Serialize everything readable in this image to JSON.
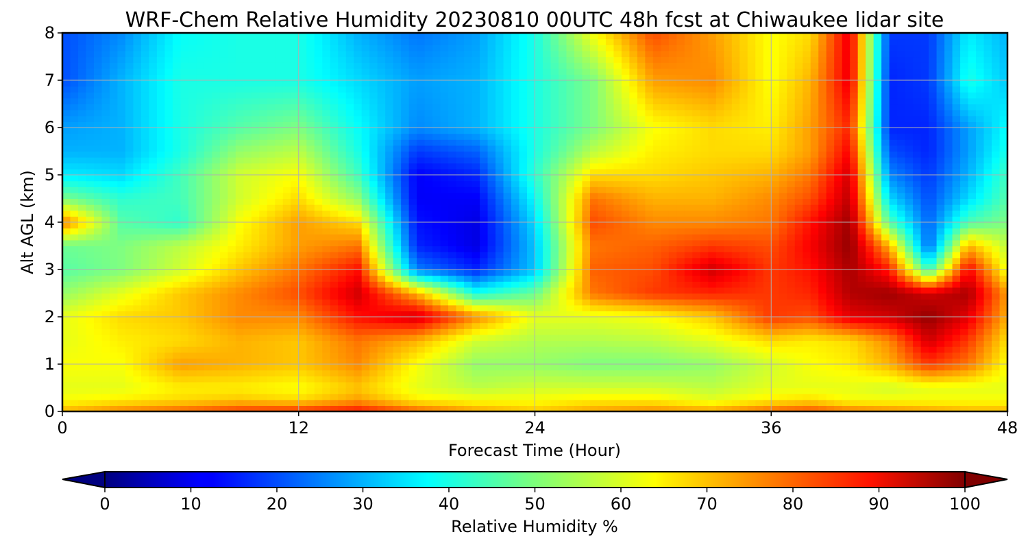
{
  "chart_data": {
    "type": "heatmap",
    "title": "WRF-Chem Relative Humidity 20230810 00UTC 48h fcst at Chiwaukee lidar site",
    "xlabel": "Forecast Time (Hour)",
    "ylabel": "Alt AGL (km)",
    "xlim": [
      0,
      48
    ],
    "ylim": [
      0,
      8
    ],
    "x_ticks": [
      "0",
      "12",
      "24",
      "36",
      "48"
    ],
    "y_ticks": [
      "0",
      "1",
      "2",
      "3",
      "4",
      "5",
      "6",
      "7",
      "8"
    ],
    "grid": true,
    "colormap": "jet",
    "colorbar": {
      "label": "Relative Humidity %",
      "range": [
        0,
        100
      ],
      "extend": "both",
      "ticks": [
        "0",
        "10",
        "20",
        "30",
        "40",
        "50",
        "60",
        "70",
        "80",
        "90",
        "100"
      ]
    },
    "x": [
      0,
      3,
      6,
      9,
      12,
      15,
      18,
      21,
      24,
      27,
      30,
      33,
      36,
      38,
      40,
      42,
      44,
      46,
      48
    ],
    "y": [
      0,
      0.25,
      0.5,
      1,
      1.5,
      2,
      2.5,
      3,
      3.5,
      4,
      4.5,
      5,
      5.5,
      6,
      7,
      8
    ],
    "values": [
      [
        70,
        75,
        78,
        82,
        83,
        86,
        78,
        72,
        68,
        72,
        74,
        72,
        78,
        80,
        76,
        74,
        72,
        70,
        70
      ],
      [
        62,
        64,
        66,
        68,
        66,
        72,
        64,
        62,
        62,
        64,
        64,
        60,
        64,
        66,
        62,
        62,
        62,
        62,
        62
      ],
      [
        60,
        60,
        64,
        64,
        62,
        68,
        60,
        56,
        58,
        58,
        58,
        56,
        60,
        60,
        60,
        58,
        60,
        60,
        60
      ],
      [
        62,
        62,
        72,
        70,
        68,
        74,
        62,
        52,
        52,
        50,
        50,
        52,
        58,
        62,
        64,
        70,
        82,
        76,
        62
      ],
      [
        60,
        64,
        66,
        70,
        68,
        76,
        70,
        58,
        55,
        55,
        56,
        60,
        66,
        64,
        66,
        74,
        92,
        82,
        65
      ],
      [
        60,
        66,
        68,
        74,
        74,
        86,
        92,
        74,
        60,
        60,
        62,
        68,
        82,
        80,
        90,
        92,
        98,
        90,
        70
      ],
      [
        52,
        60,
        68,
        74,
        80,
        92,
        70,
        40,
        48,
        76,
        82,
        84,
        82,
        84,
        95,
        97,
        92,
        96,
        72
      ],
      [
        46,
        50,
        58,
        68,
        76,
        86,
        25,
        16,
        32,
        78,
        80,
        92,
        82,
        86,
        96,
        85,
        42,
        88,
        60
      ],
      [
        48,
        50,
        56,
        64,
        72,
        76,
        16,
        10,
        32,
        76,
        78,
        82,
        80,
        88,
        98,
        70,
        22,
        70,
        56
      ],
      [
        76,
        46,
        42,
        62,
        72,
        66,
        14,
        10,
        34,
        80,
        74,
        74,
        76,
        86,
        97,
        46,
        22,
        45,
        50
      ],
      [
        50,
        42,
        44,
        58,
        66,
        52,
        12,
        12,
        38,
        76,
        70,
        70,
        74,
        80,
        94,
        34,
        20,
        34,
        46
      ],
      [
        36,
        34,
        44,
        58,
        62,
        44,
        12,
        16,
        42,
        66,
        66,
        68,
        70,
        76,
        92,
        26,
        18,
        30,
        44
      ],
      [
        30,
        30,
        40,
        52,
        56,
        40,
        18,
        22,
        40,
        56,
        64,
        66,
        66,
        72,
        88,
        20,
        16,
        28,
        40
      ],
      [
        28,
        30,
        40,
        46,
        50,
        38,
        26,
        30,
        40,
        50,
        62,
        66,
        64,
        72,
        84,
        16,
        16,
        28,
        38
      ],
      [
        20,
        30,
        40,
        40,
        40,
        34,
        28,
        30,
        40,
        50,
        72,
        74,
        62,
        70,
        90,
        16,
        18,
        40,
        32
      ],
      [
        20,
        26,
        38,
        40,
        40,
        30,
        24,
        28,
        40,
        62,
        80,
        72,
        62,
        66,
        90,
        18,
        18,
        36,
        30
      ]
    ]
  }
}
